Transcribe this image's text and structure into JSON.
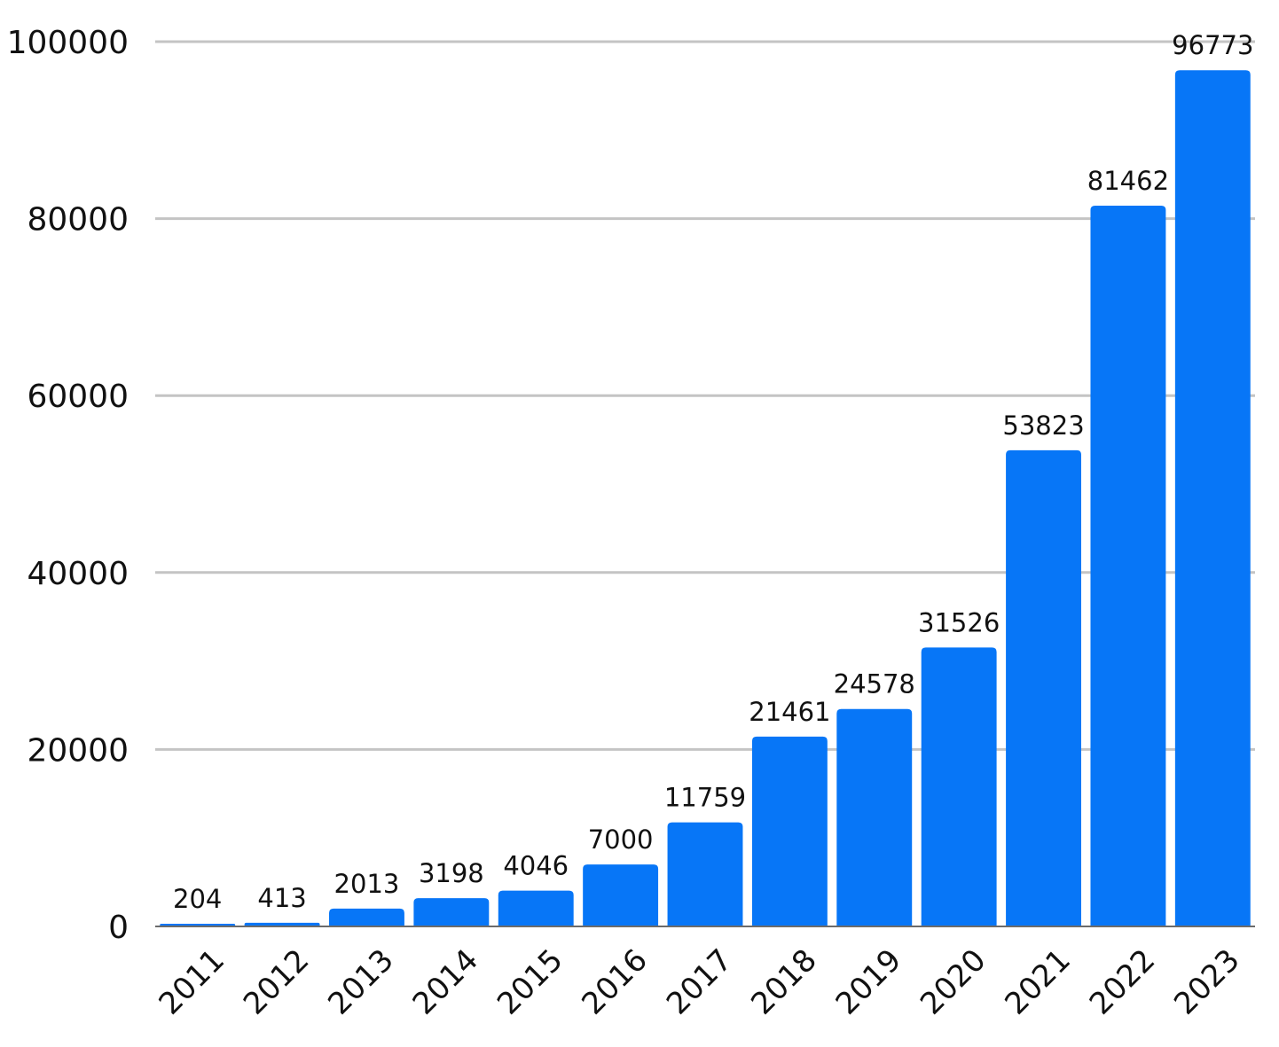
{
  "chart_data": {
    "type": "bar",
    "categories": [
      "2011",
      "2012",
      "2013",
      "2014",
      "2015",
      "2016",
      "2017",
      "2018",
      "2019",
      "2020",
      "2021",
      "2022",
      "2023"
    ],
    "values": [
      204,
      413,
      2013,
      3198,
      4046,
      7000,
      11759,
      21461,
      24578,
      31526,
      53823,
      81462,
      96773
    ],
    "data_labels": [
      "204",
      "413",
      "2013",
      "3198",
      "4046",
      "7000",
      "11759",
      "21461",
      "24578",
      "31526",
      "53823",
      "81462",
      "96773"
    ],
    "yticks": [
      0,
      20000,
      40000,
      60000,
      80000,
      100000
    ],
    "ytick_labels": [
      "0",
      "20000",
      "40000",
      "60000",
      "80000",
      "100000"
    ],
    "ylim": [
      0,
      100000
    ],
    "grid": true,
    "legend": "none",
    "bar_color": "#0776f7",
    "grid_color": "#c4c4c4",
    "text_color": "#111111"
  }
}
